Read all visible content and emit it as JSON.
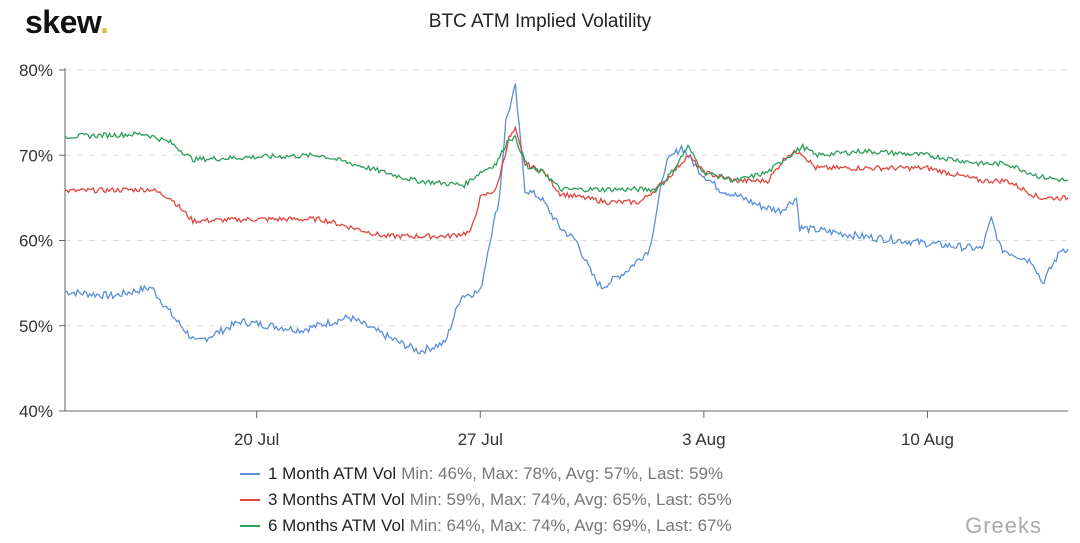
{
  "logo": {
    "text": "skew",
    "dot": "."
  },
  "watermark": "Greeks",
  "chart_data": {
    "type": "line",
    "title": "BTC ATM Implied Volatility",
    "xlabel": "",
    "ylabel": "",
    "x_unit": "days since 14 Jul",
    "xlim": [
      0,
      31.4
    ],
    "ylim": [
      40,
      80
    ],
    "yticks": [
      {
        "v": 40,
        "label": "40%"
      },
      {
        "v": 50,
        "label": "50%"
      },
      {
        "v": 60,
        "label": "60%"
      },
      {
        "v": 70,
        "label": "70%"
      },
      {
        "v": 80,
        "label": "80%"
      }
    ],
    "xticks": [
      {
        "v": 6,
        "label": "20 Jul"
      },
      {
        "v": 13,
        "label": "27 Jul"
      },
      {
        "v": 20,
        "label": "3 Aug"
      },
      {
        "v": 27,
        "label": "10 Aug"
      }
    ],
    "grid": true,
    "legend_position": "bottom",
    "series": [
      {
        "name": "1 Month ATM Vol",
        "stats": "Min: 46%, Max: 78%, Avg: 57%, Last: 59%",
        "color": "#5b8fd9",
        "x": [
          0,
          1.5,
          2.7,
          3.4,
          4.1,
          5.5,
          7.4,
          8.9,
          10.2,
          11.1,
          11.9,
          12.4,
          13,
          13.3,
          13.6,
          13.8,
          14.1,
          14.4,
          14.9,
          15.5,
          16,
          16.5,
          16.8,
          17.6,
          18.3,
          18.8,
          19.3,
          19.9,
          20.5,
          21.2,
          21.8,
          22.4,
          22.9,
          23,
          24,
          24.9,
          26.2,
          27.4,
          28.7,
          29,
          29.3,
          30.3,
          30.6,
          31.2,
          31.4
        ],
        "y": [
          54,
          53.5,
          54.5,
          51,
          48,
          50.5,
          49.5,
          51,
          48.5,
          47,
          48,
          53.5,
          54,
          60,
          65,
          74,
          78,
          66,
          65,
          61.5,
          60,
          56,
          54.5,
          56.5,
          59,
          69,
          71,
          68,
          66,
          65,
          64,
          63.5,
          65,
          61.5,
          61,
          60.5,
          60,
          59.5,
          59,
          62.5,
          59,
          57.5,
          55,
          59,
          59
        ]
      },
      {
        "name": "3 Months ATM Vol",
        "stats": "Min: 59%, Max: 74%, Avg: 65%, Last: 65%",
        "color": "#e0463f",
        "x": [
          0,
          2.7,
          3.3,
          4,
          6,
          8,
          10,
          12,
          12.7,
          13,
          13.5,
          13.9,
          14.1,
          14.4,
          15,
          15.5,
          17,
          18,
          18.8,
          19.5,
          20,
          21,
          22,
          22.6,
          23,
          23.5,
          25,
          27,
          28.7,
          29.5,
          30.5,
          31.4
        ],
        "y": [
          65.8,
          66,
          65,
          62.3,
          62.5,
          62.5,
          60.5,
          60.5,
          61,
          65,
          66,
          72,
          73,
          69,
          68,
          65.5,
          64.5,
          64.5,
          67,
          70,
          68,
          67,
          67,
          70,
          70.5,
          68.5,
          68.5,
          68.5,
          67,
          67,
          65,
          65
        ]
      },
      {
        "name": "6 Months ATM Vol",
        "stats": "Min: 64%, Max: 74%, Avg: 69%, Last: 67%",
        "color": "#2e9e5b",
        "x": [
          0,
          2.5,
          3.3,
          4,
          6,
          8,
          9.5,
          11,
          12.5,
          13,
          13.5,
          13.9,
          14.1,
          14.5,
          15,
          15.5,
          17,
          18.5,
          19,
          19.5,
          20,
          21,
          22,
          22.5,
          23.1,
          23.5,
          25,
          27,
          28.7,
          29.5,
          30.5,
          31.4
        ],
        "y": [
          72.2,
          72.5,
          71.5,
          69.5,
          69.8,
          70,
          68.5,
          67,
          66.5,
          68,
          69,
          72,
          72,
          68.5,
          68,
          66,
          66,
          66,
          68,
          71,
          68,
          67,
          68,
          69.5,
          71,
          70,
          70.5,
          70,
          69,
          69,
          67.5,
          67
        ]
      }
    ]
  }
}
